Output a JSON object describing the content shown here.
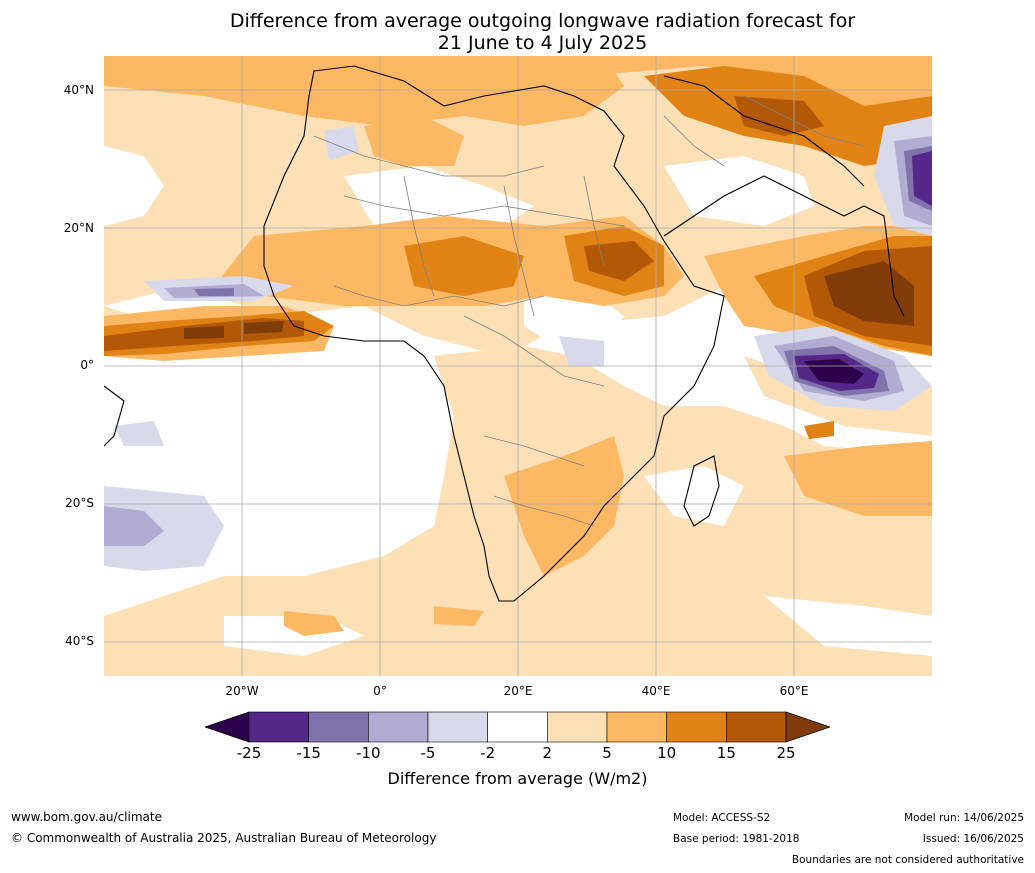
{
  "title": {
    "line1": "Difference from average outgoing longwave radiation forecast for",
    "line2": "21 June to 4 July 2025"
  },
  "map": {
    "lat_labels": [
      "40°N",
      "20°N",
      "0°",
      "20°S",
      "40°S"
    ],
    "lon_labels": [
      "20°W",
      "0°",
      "20°E",
      "40°E",
      "60°E"
    ],
    "grid": true
  },
  "colorbar": {
    "ticks": [
      "-25",
      "-15",
      "-10",
      "-5",
      "-2",
      "2",
      "5",
      "10",
      "15",
      "25"
    ],
    "colors": [
      "#2d004b",
      "#542788",
      "#8073ac",
      "#b2abd2",
      "#d8daeb",
      "#ffffff",
      "#fee0b6",
      "#fdb863",
      "#e08214",
      "#b35806",
      "#7f3b08"
    ],
    "label": "Difference from average (W/m2)"
  },
  "footer": {
    "website": "www.bom.gov.au/climate",
    "copyright": "© Commonwealth of Australia 2025, Australian Bureau of Meteorology",
    "model": "Model: ACCESS-S2",
    "base_period": "Base period: 1981-2018",
    "model_run": "Model run: 14/06/2025",
    "issued": "Issued: 16/06/2025",
    "disclaimer": "Boundaries are not considered authoritative"
  }
}
